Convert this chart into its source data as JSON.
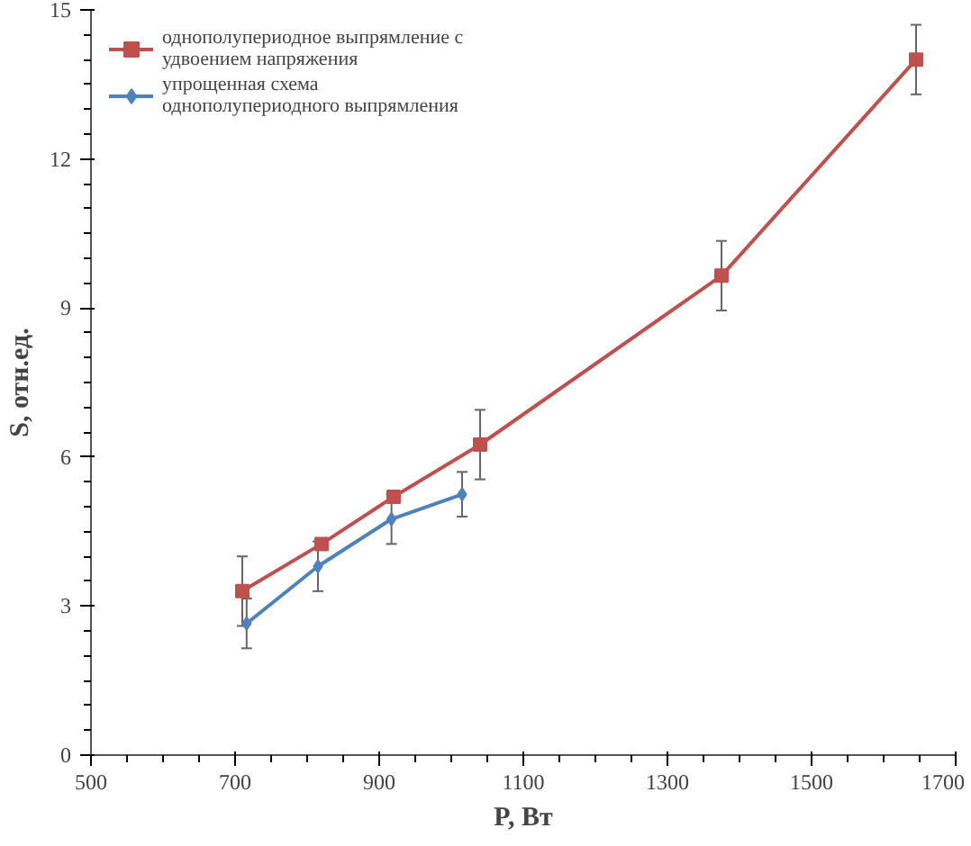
{
  "chart_data": {
    "type": "line",
    "xlabel": "P, Вт",
    "ylabel": "S, отн.ед.",
    "xlim": [
      500,
      1700
    ],
    "xticks": [
      500,
      700,
      900,
      1100,
      1300,
      1500,
      1700
    ],
    "ylim": [
      0,
      15
    ],
    "yticks": [
      0,
      3,
      6,
      9,
      12,
      15
    ],
    "grid": false,
    "legend": "top left",
    "line_style": "solid",
    "series": [
      {
        "name": "однополупериодное выпрямление с удвоением напряжения",
        "color": "#c0504d",
        "marker": "square",
        "x": [
          710,
          820,
          920,
          1040,
          1375,
          1645
        ],
        "values": [
          3.3,
          4.25,
          5.2,
          6.25,
          9.65,
          14.0
        ],
        "errors": [
          0.7,
          null,
          null,
          0.7,
          0.7,
          0.7
        ]
      },
      {
        "name": "упрощенная схема однополупериодного выпрямления",
        "color": "#4f81bd",
        "marker": "diamond",
        "x": [
          716,
          815,
          917,
          1015
        ],
        "values": [
          2.65,
          3.8,
          4.75,
          5.25
        ],
        "errors": [
          0.5,
          0.5,
          0.5,
          0.45
        ]
      }
    ]
  }
}
